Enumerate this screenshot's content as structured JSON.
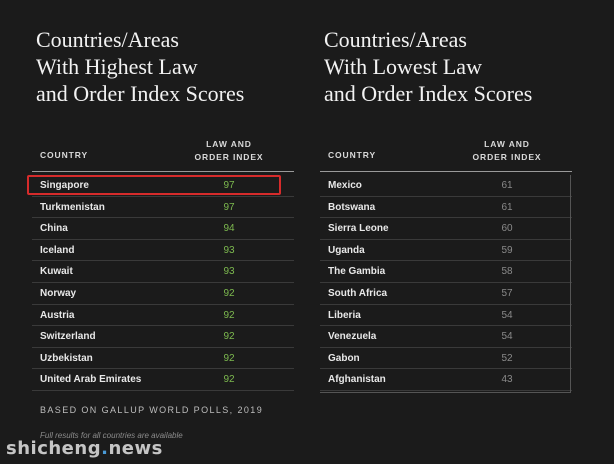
{
  "chart_data": [
    {
      "type": "table",
      "title_lines": [
        "Countries/Areas",
        "With Highest Law",
        "and Order Index Scores"
      ],
      "columns": [
        "COUNTRY",
        "LAW AND ORDER INDEX"
      ],
      "column_header_lines": [
        "LAW AND",
        "ORDER INDEX"
      ],
      "highlighted_row": "Singapore",
      "highlight_color": "#d62b2b",
      "value_color": "#7dba4f",
      "rows": [
        {
          "country": "Singapore",
          "index": 97
        },
        {
          "country": "Turkmenistan",
          "index": 97
        },
        {
          "country": "China",
          "index": 94
        },
        {
          "country": "Iceland",
          "index": 93
        },
        {
          "country": "Kuwait",
          "index": 93
        },
        {
          "country": "Norway",
          "index": 92
        },
        {
          "country": "Austria",
          "index": 92
        },
        {
          "country": "Switzerland",
          "index": 92
        },
        {
          "country": "Uzbekistan",
          "index": 92
        },
        {
          "country": "United Arab Emirates",
          "index": 92
        }
      ]
    },
    {
      "type": "table",
      "title_lines": [
        "Countries/Areas",
        "With Lowest Law",
        "and Order Index Scores"
      ],
      "columns": [
        "COUNTRY",
        "LAW AND ORDER INDEX"
      ],
      "column_header_lines": [
        "LAW AND",
        "ORDER INDEX"
      ],
      "value_color": "#8a8a8a",
      "rows": [
        {
          "country": "Mexico",
          "index": 61
        },
        {
          "country": "Botswana",
          "index": 61
        },
        {
          "country": "Sierra Leone",
          "index": 60
        },
        {
          "country": "Uganda",
          "index": 59
        },
        {
          "country": "The Gambia",
          "index": 58
        },
        {
          "country": "South Africa",
          "index": 57
        },
        {
          "country": "Liberia",
          "index": 54
        },
        {
          "country": "Venezuela",
          "index": 54
        },
        {
          "country": "Gabon",
          "index": 52
        },
        {
          "country": "Afghanistan",
          "index": 43
        }
      ]
    }
  ],
  "footer": {
    "source": "BASED ON GALLUP WORLD POLLS, 2019",
    "note": "Full results for all countries are available"
  },
  "watermark": {
    "part1": "shicheng",
    "dot": ".",
    "part2": "news"
  },
  "colors": {
    "background": "#1b1b1b",
    "text": "#e6e6e6",
    "accent_green": "#7dba4f",
    "highlight_red": "#d62b2b"
  }
}
